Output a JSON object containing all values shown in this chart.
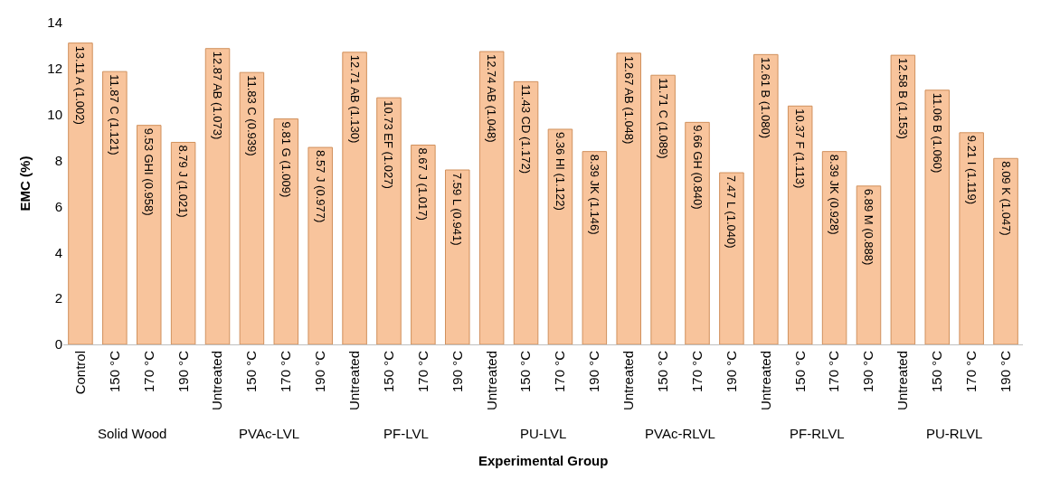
{
  "chart_data": {
    "type": "bar",
    "xlabel": "Experimental Group",
    "ylabel": "EMC (%)",
    "categories": [
      "Control",
      "150 °C",
      "170 °C",
      "190 °C",
      "Untreated",
      "150 °C",
      "170 °C",
      "190 °C",
      "Untreated",
      "150 °C",
      "170 °C",
      "190 °C",
      "Untreated",
      "150 °C",
      "170 °C",
      "190 °C",
      "Untreated",
      "150 °C",
      "170 °C",
      "190 °C",
      "Untreated",
      "150 °C",
      "170 °C",
      "190 °C",
      "Untreated",
      "150 °C",
      "170 °C",
      "190 °C"
    ],
    "values": [
      13.11,
      11.87,
      9.53,
      8.79,
      12.87,
      11.83,
      9.81,
      8.57,
      12.71,
      10.73,
      8.67,
      7.59,
      12.74,
      11.43,
      9.36,
      8.39,
      12.67,
      11.71,
      9.66,
      7.47,
      12.61,
      10.37,
      8.39,
      6.89,
      12.58,
      11.06,
      9.21,
      8.09
    ],
    "value_labels": [
      "13.11 A (1.002)",
      "11.87 C (1.121)",
      "9.53 GHI (0.958)",
      "8.79 J (1.021)",
      "12.87 AB (1.073)",
      "11.83 C (0.939)",
      "9.81 G (1.009)",
      "8.57 J (0.977)",
      "12.71 AB (1.130)",
      "10.73 EF (1.027)",
      "8.67 J (1.017)",
      "7.59 L (0.941)",
      "12.74 AB (1.048)",
      "11.43 CD (1.172)",
      "9.36 HI (1.122)",
      "8.39 JK (1.146)",
      "12.67 AB (1.048)",
      "11.71 C (1.089)",
      "9.66 GH (0.840)",
      "7.47 L (1.040)",
      "12.61 B (1.080)",
      "10.37 F (1.113)",
      "8.39 JK (0.928)",
      "6.89 M (0.888)",
      "12.58 B (1.153)",
      "11.06 B (1.060)",
      "9.21 I (1.119)",
      "8.09 K (1.047)"
    ],
    "annotations": [
      "Solid Wood",
      "PVAc-LVL",
      "PF-LVL",
      "PU-LVL",
      "PVAc-RLVL",
      "PF-RLVL",
      "PU-RLVL"
    ],
    "color": "#f8c49c",
    "ylim": [
      0,
      14
    ],
    "yticks": [
      0,
      2,
      4,
      6,
      8,
      10,
      12,
      14
    ]
  }
}
